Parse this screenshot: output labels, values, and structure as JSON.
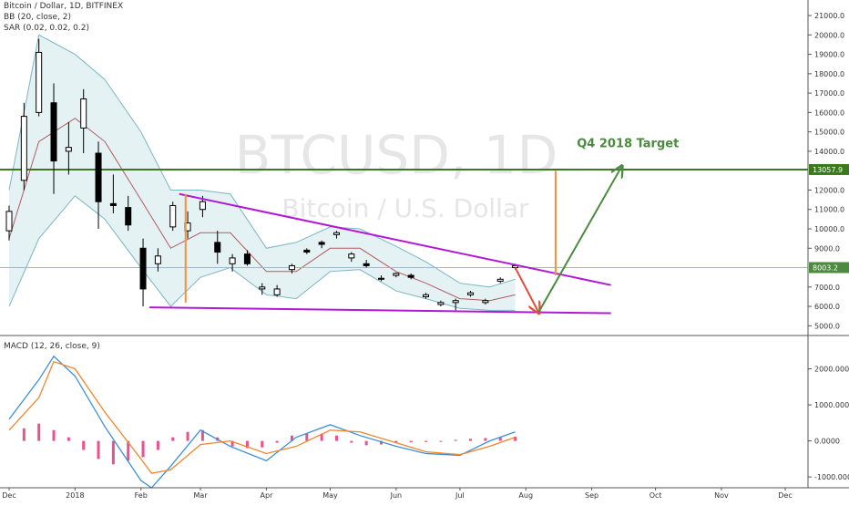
{
  "header": {
    "symbol_line": "Bitcoin / Dollar, 1D, BITFINEX",
    "bb_line": "BB (20, close, 2)",
    "sar_line": "SAR (0.02, 0.02, 0.2)",
    "macd_line": "MACD (12, 26, close, 9)"
  },
  "watermark": {
    "ticker": "BTCUSD, 1D",
    "name": "Bitcoin / U.S. Dollar"
  },
  "colors": {
    "bull_candle": "#ffffff",
    "bear_candle": "#000000",
    "bb_fill": "#cfe8ea",
    "bb_band": "#79b7c2",
    "bb_basis": "#b05a60",
    "trendline": "#b219d6",
    "target_line": "#3a7a1a",
    "target_arrow": "#4c8a3f",
    "orange": "#f0923a",
    "red_arrow": "#e54b3c",
    "macd": "#3d8fd6",
    "signal": "#f0862b",
    "hist": "#e8528f"
  },
  "chart_data": [
    {
      "type": "candlestick",
      "title": "",
      "x_range": [
        "2017-12-01",
        "2018-12-31"
      ],
      "ylim": [
        4500,
        21800
      ],
      "ylim_secondary": [
        4500,
        21800
      ],
      "grid": false,
      "x_ticks": [
        {
          "date": "2017-12-01",
          "label": "Dec"
        },
        {
          "date": "2018-01-01",
          "label": "2018"
        },
        {
          "date": "2018-02-01",
          "label": "Feb"
        },
        {
          "date": "2018-03-01",
          "label": "Mar"
        },
        {
          "date": "2018-04-01",
          "label": "Apr"
        },
        {
          "date": "2018-05-01",
          "label": "May"
        },
        {
          "date": "2018-06-01",
          "label": "Jun"
        },
        {
          "date": "2018-07-01",
          "label": "Jul"
        },
        {
          "date": "2018-08-01",
          "label": "Aug"
        },
        {
          "date": "2018-09-01",
          "label": "Sep"
        },
        {
          "date": "2018-10-01",
          "label": "Oct"
        },
        {
          "date": "2018-11-01",
          "label": "Nov"
        },
        {
          "date": "2018-12-01",
          "label": "Dec"
        }
      ],
      "y_ticks": [
        {
          "value": 21000,
          "label": "21000.0"
        },
        {
          "value": 20000,
          "label": "20000.0"
        },
        {
          "value": 19000,
          "label": "19000.0"
        },
        {
          "value": 18000,
          "label": "18000.0"
        },
        {
          "value": 17000,
          "label": "17000.0"
        },
        {
          "value": 16000,
          "label": "16000.0"
        },
        {
          "value": 15000,
          "label": "15000.0"
        },
        {
          "value": 14000,
          "label": "14000.0"
        },
        {
          "value": 12000,
          "label": "12000.0"
        },
        {
          "value": 11000,
          "label": "11000.0"
        },
        {
          "value": 10000,
          "label": "10000.0"
        },
        {
          "value": 9000,
          "label": "9000.0"
        },
        {
          "value": 7000,
          "label": "7000.0"
        },
        {
          "value": 6000,
          "label": "6000.0"
        },
        {
          "value": 5000,
          "label": "5000.0"
        }
      ],
      "price_labels": [
        {
          "value": 13057.9,
          "label": "13057.9",
          "bg": "#3a7a1a"
        },
        {
          "value": 8003.2,
          "label": "8003.2",
          "bg": "#4c8a3f"
        }
      ],
      "horizontal_lines": [
        {
          "value": 13057.9,
          "color": "#3a7a1a"
        },
        {
          "value": 8003.2,
          "color": "#9cc49a"
        }
      ],
      "candles_weekly_approx": [
        {
          "date": "2017-12-01",
          "open": 9900,
          "high": 11200,
          "low": 9400,
          "close": 10900
        },
        {
          "date": "2017-12-08",
          "open": 12500,
          "high": 16500,
          "low": 12000,
          "close": 15800
        },
        {
          "date": "2017-12-15",
          "open": 16000,
          "high": 19800,
          "low": 15800,
          "close": 19100
        },
        {
          "date": "2017-12-22",
          "open": 16500,
          "high": 17500,
          "low": 11800,
          "close": 13500
        },
        {
          "date": "2017-12-29",
          "open": 14000,
          "high": 15500,
          "low": 12800,
          "close": 14200
        },
        {
          "date": "2018-01-05",
          "open": 15200,
          "high": 17200,
          "low": 13900,
          "close": 16700
        },
        {
          "date": "2018-01-12",
          "open": 13900,
          "high": 14500,
          "low": 10000,
          "close": 11400
        },
        {
          "date": "2018-01-19",
          "open": 11300,
          "high": 12800,
          "low": 10800,
          "close": 11200
        },
        {
          "date": "2018-01-26",
          "open": 11100,
          "high": 11700,
          "low": 9900,
          "close": 10200
        },
        {
          "date": "2018-02-02",
          "open": 9000,
          "high": 9500,
          "low": 6000,
          "close": 6900
        },
        {
          "date": "2018-02-09",
          "open": 8200,
          "high": 9000,
          "low": 7800,
          "close": 8600
        },
        {
          "date": "2018-02-16",
          "open": 10100,
          "high": 11400,
          "low": 9900,
          "close": 11200
        },
        {
          "date": "2018-02-23",
          "open": 9900,
          "high": 10900,
          "low": 9500,
          "close": 10300
        },
        {
          "date": "2018-03-02",
          "open": 11000,
          "high": 11700,
          "low": 10600,
          "close": 11400
        },
        {
          "date": "2018-03-09",
          "open": 9300,
          "high": 9900,
          "low": 8200,
          "close": 8800
        },
        {
          "date": "2018-03-16",
          "open": 8200,
          "high": 8700,
          "low": 7800,
          "close": 8500
        },
        {
          "date": "2018-03-23",
          "open": 8700,
          "high": 8900,
          "low": 8100,
          "close": 8200
        },
        {
          "date": "2018-03-30",
          "open": 6900,
          "high": 7200,
          "low": 6600,
          "close": 7000
        },
        {
          "date": "2018-04-06",
          "open": 6600,
          "high": 7100,
          "low": 6500,
          "close": 6900
        },
        {
          "date": "2018-04-13",
          "open": 7900,
          "high": 8200,
          "low": 7700,
          "close": 8100
        },
        {
          "date": "2018-04-20",
          "open": 8900,
          "high": 9000,
          "low": 8700,
          "close": 8800
        },
        {
          "date": "2018-04-27",
          "open": 9300,
          "high": 9400,
          "low": 9000,
          "close": 9200
        },
        {
          "date": "2018-05-04",
          "open": 9700,
          "high": 9900,
          "low": 9500,
          "close": 9800
        },
        {
          "date": "2018-05-11",
          "open": 8500,
          "high": 8800,
          "low": 8300,
          "close": 8700
        },
        {
          "date": "2018-05-18",
          "open": 8200,
          "high": 8400,
          "low": 8000,
          "close": 8100
        },
        {
          "date": "2018-05-25",
          "open": 7400,
          "high": 7600,
          "low": 7300,
          "close": 7450
        },
        {
          "date": "2018-06-01",
          "open": 7600,
          "high": 7750,
          "low": 7500,
          "close": 7700
        },
        {
          "date": "2018-06-08",
          "open": 7600,
          "high": 7700,
          "low": 7400,
          "close": 7500
        },
        {
          "date": "2018-06-15",
          "open": 6500,
          "high": 6700,
          "low": 6400,
          "close": 6600
        },
        {
          "date": "2018-06-22",
          "open": 6100,
          "high": 6300,
          "low": 6000,
          "close": 6200
        },
        {
          "date": "2018-06-29",
          "open": 6200,
          "high": 6400,
          "low": 5800,
          "close": 6300
        },
        {
          "date": "2018-07-06",
          "open": 6600,
          "high": 6800,
          "low": 6500,
          "close": 6700
        },
        {
          "date": "2018-07-13",
          "open": 6200,
          "high": 6400,
          "low": 6100,
          "close": 6300
        },
        {
          "date": "2018-07-20",
          "open": 7300,
          "high": 7500,
          "low": 7200,
          "close": 7400
        },
        {
          "date": "2018-07-27",
          "open": 8000,
          "high": 8200,
          "low": 7900,
          "close": 8100
        }
      ],
      "bollinger_bands_approx": {
        "dates": [
          "2017-12-01",
          "2017-12-15",
          "2018-01-01",
          "2018-01-15",
          "2018-02-01",
          "2018-02-15",
          "2018-03-01",
          "2018-03-15",
          "2018-04-01",
          "2018-04-15",
          "2018-05-01",
          "2018-05-15",
          "2018-06-01",
          "2018-06-15",
          "2018-07-01",
          "2018-07-15",
          "2018-07-27"
        ],
        "upper": [
          12000,
          20000,
          19000,
          17700,
          15000,
          12000,
          12000,
          11800,
          9000,
          9300,
          10100,
          10000,
          9100,
          8300,
          7200,
          7000,
          7400
        ],
        "basis": [
          9500,
          14500,
          15700,
          14500,
          11500,
          9000,
          9800,
          9800,
          7800,
          7800,
          9000,
          9000,
          7800,
          7200,
          6400,
          6300,
          6600
        ],
        "lower": [
          6000,
          9500,
          11700,
          10500,
          8000,
          6000,
          7500,
          8000,
          6600,
          6400,
          7800,
          7900,
          6800,
          6400,
          5900,
          5800,
          5800
        ]
      },
      "annotations": [
        {
          "kind": "hline_segment",
          "name": "upper-trendline",
          "from": {
            "date": "2018-02-19",
            "value": 11800
          },
          "to": {
            "date": "2018-09-10",
            "value": 7100
          },
          "color": "#b219d6"
        },
        {
          "kind": "hline_segment",
          "name": "lower-trendline",
          "from": {
            "date": "2018-02-05",
            "value": 5950
          },
          "to": {
            "date": "2018-09-10",
            "value": 5650
          },
          "color": "#b219d6"
        },
        {
          "kind": "vline",
          "name": "orange-vertical-feb",
          "date": "2018-02-22",
          "from": 11800,
          "to": 6200,
          "color": "#f0923a"
        },
        {
          "kind": "vline",
          "name": "orange-vertical-aug",
          "date": "2018-08-15",
          "from": 13000,
          "to": 7600,
          "color": "#f0923a"
        },
        {
          "kind": "arrow",
          "name": "red-down-arrow",
          "from": {
            "date": "2018-07-27",
            "value": 8000
          },
          "to": {
            "date": "2018-08-07",
            "value": 5700
          },
          "color": "#e54b3c"
        },
        {
          "kind": "arrow",
          "name": "green-up-arrow",
          "from": {
            "date": "2018-08-07",
            "value": 5700
          },
          "to": {
            "date": "2018-09-15",
            "value": 13200
          },
          "color": "#4c8a3f"
        },
        {
          "kind": "text",
          "name": "target-label",
          "text": "Q4 2018 Target",
          "at": {
            "date": "2018-08-25",
            "value": 14200
          },
          "color": "#4c8a3f"
        }
      ]
    },
    {
      "type": "macd",
      "title": "",
      "ylim": [
        -1300,
        2900
      ],
      "y_ticks": [
        {
          "value": 2000,
          "label": "2000.0000"
        },
        {
          "value": 1000,
          "label": "1000.0000"
        },
        {
          "value": 0,
          "label": "0.0000"
        },
        {
          "value": -1000,
          "label": "-1000.0000"
        }
      ],
      "series": [
        {
          "key": "macd",
          "dates": [
            "2017-12-01",
            "2017-12-15",
            "2017-12-22",
            "2018-01-01",
            "2018-01-15",
            "2018-02-01",
            "2018-02-06",
            "2018-02-15",
            "2018-03-01",
            "2018-03-15",
            "2018-04-01",
            "2018-04-15",
            "2018-05-01",
            "2018-05-15",
            "2018-06-01",
            "2018-06-15",
            "2018-07-01",
            "2018-07-15",
            "2018-07-27"
          ],
          "values": [
            600,
            1700,
            2350,
            1800,
            400,
            -1100,
            -1300,
            -700,
            300,
            -150,
            -550,
            100,
            450,
            150,
            -150,
            -350,
            -400,
            0,
            250
          ]
        },
        {
          "key": "signal",
          "dates": [
            "2017-12-01",
            "2017-12-15",
            "2017-12-22",
            "2018-01-01",
            "2018-01-15",
            "2018-02-01",
            "2018-02-06",
            "2018-02-15",
            "2018-03-01",
            "2018-03-15",
            "2018-04-01",
            "2018-04-15",
            "2018-05-01",
            "2018-05-15",
            "2018-06-01",
            "2018-06-15",
            "2018-07-01",
            "2018-07-15",
            "2018-07-27"
          ],
          "values": [
            300,
            1200,
            2200,
            2000,
            800,
            -500,
            -900,
            -800,
            -100,
            0,
            -350,
            -150,
            300,
            250,
            -50,
            -300,
            -380,
            -150,
            100
          ]
        }
      ],
      "histogram": {
        "dates": [
          "2017-12-08",
          "2017-12-15",
          "2017-12-22",
          "2017-12-29",
          "2018-01-05",
          "2018-01-12",
          "2018-01-19",
          "2018-01-26",
          "2018-02-02",
          "2018-02-09",
          "2018-02-16",
          "2018-02-23",
          "2018-03-02",
          "2018-03-09",
          "2018-03-16",
          "2018-03-23",
          "2018-03-30",
          "2018-04-06",
          "2018-04-13",
          "2018-04-20",
          "2018-04-27",
          "2018-05-04",
          "2018-05-11",
          "2018-05-18",
          "2018-05-25",
          "2018-06-01",
          "2018-06-08",
          "2018-06-15",
          "2018-06-22",
          "2018-06-29",
          "2018-07-06",
          "2018-07-13",
          "2018-07-20",
          "2018-07-27"
        ],
        "values": [
          350,
          480,
          300,
          100,
          -250,
          -500,
          -650,
          -550,
          -450,
          -250,
          100,
          250,
          300,
          100,
          -150,
          -200,
          -180,
          -50,
          150,
          200,
          200,
          150,
          -50,
          -120,
          -100,
          -50,
          -40,
          -30,
          -20,
          30,
          60,
          80,
          100,
          120
        ]
      }
    }
  ]
}
